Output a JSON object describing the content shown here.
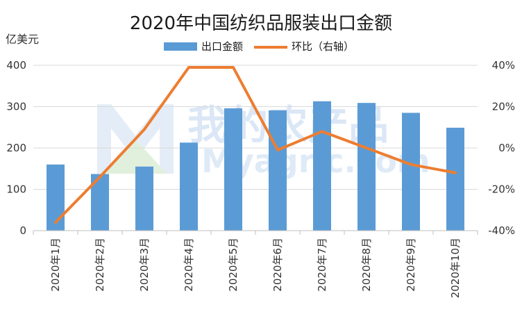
{
  "chart_data": {
    "type": "bar+line",
    "title": "2020年中国纺织品服装出口金额",
    "y_left_unit": "亿美元",
    "categories": [
      "2020年1月",
      "2020年2月",
      "2020年3月",
      "2020年4月",
      "2020年5月",
      "2020年6月",
      "2020年7月",
      "2020年8月",
      "2020年9月",
      "2020年10月"
    ],
    "series": [
      {
        "name": "出口金额",
        "kind": "bar",
        "axis": "left",
        "color": "#5b9bd5",
        "values": [
          160,
          137,
          155,
          213,
          296,
          291,
          313,
          309,
          285,
          249
        ]
      },
      {
        "name": "环比（右轴）",
        "kind": "line",
        "axis": "right",
        "color": "#ed7d31",
        "values": [
          -36,
          -14,
          9,
          39,
          39,
          -1,
          8,
          0,
          -8,
          -12
        ]
      }
    ],
    "y_left": {
      "min": 0,
      "max": 400,
      "ticks": [
        "0",
        "100",
        "200",
        "300",
        "400"
      ]
    },
    "y_right": {
      "min": -40,
      "max": 40,
      "ticks": [
        "-40%",
        "-20%",
        "0%",
        "20%",
        "40%"
      ]
    },
    "legend_position": "top-center",
    "grid": true,
    "watermark": {
      "line1": "我的农产品",
      "line2": "Myagric.com"
    }
  }
}
